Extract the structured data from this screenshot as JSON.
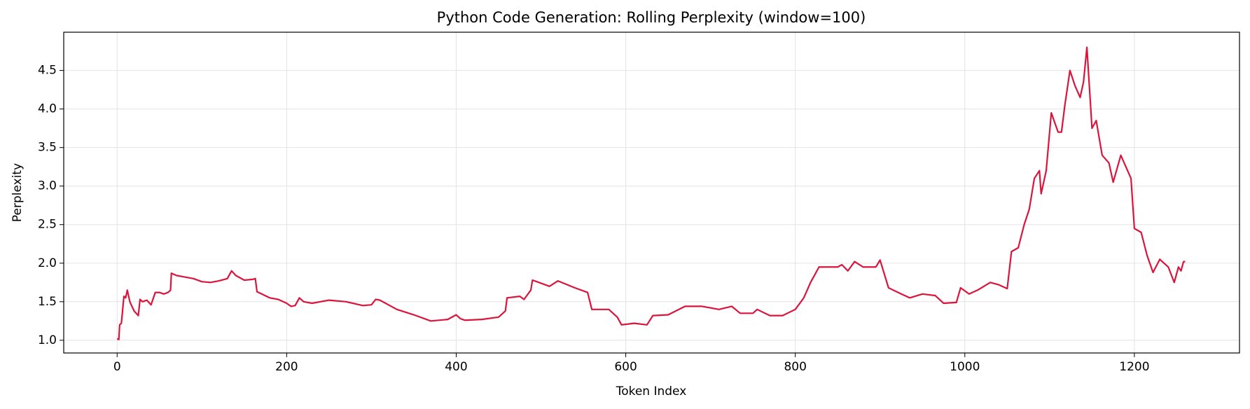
{
  "chart_data": {
    "type": "line",
    "title": "Python Code Generation: Rolling Perplexity (window=100)",
    "x_label": "Token Index",
    "y_label": "Perplexity",
    "x": [
      0,
      2,
      3,
      5,
      8,
      10,
      12,
      15,
      20,
      25,
      27,
      30,
      35,
      40,
      45,
      50,
      55,
      60,
      63,
      64,
      70,
      80,
      90,
      100,
      110,
      120,
      130,
      135,
      140,
      150,
      160,
      163,
      165,
      180,
      190,
      200,
      205,
      210,
      215,
      220,
      230,
      250,
      270,
      290,
      300,
      305,
      310,
      330,
      350,
      370,
      390,
      400,
      405,
      410,
      430,
      450,
      458,
      460,
      475,
      480,
      488,
      490,
      510,
      520,
      540,
      555,
      560,
      580,
      590,
      595,
      610,
      625,
      632,
      650,
      670,
      690,
      710,
      725,
      735,
      750,
      755,
      770,
      785,
      800,
      810,
      818,
      828,
      850,
      855,
      862,
      870,
      880,
      895,
      900,
      910,
      925,
      935,
      950,
      965,
      975,
      990,
      995,
      1005,
      1015,
      1030,
      1040,
      1050,
      1055,
      1063,
      1070,
      1076,
      1082,
      1088,
      1090,
      1096,
      1102,
      1110,
      1114,
      1118,
      1124,
      1130,
      1136,
      1140,
      1144,
      1150,
      1155,
      1162,
      1170,
      1175,
      1184,
      1190,
      1196,
      1200,
      1208,
      1215,
      1222,
      1230,
      1240,
      1247,
      1252,
      1255,
      1258,
      1260
    ],
    "series": [
      {
        "name": "Perplexity",
        "color": "#dc143c",
        "values": [
          1.02,
          1.01,
          1.2,
          1.22,
          1.57,
          1.55,
          1.65,
          1.5,
          1.38,
          1.32,
          1.53,
          1.5,
          1.52,
          1.46,
          1.62,
          1.62,
          1.6,
          1.62,
          1.65,
          1.87,
          1.84,
          1.82,
          1.8,
          1.76,
          1.75,
          1.77,
          1.8,
          1.9,
          1.84,
          1.78,
          1.79,
          1.8,
          1.63,
          1.55,
          1.53,
          1.48,
          1.44,
          1.45,
          1.55,
          1.5,
          1.48,
          1.52,
          1.5,
          1.45,
          1.46,
          1.53,
          1.52,
          1.4,
          1.33,
          1.25,
          1.27,
          1.33,
          1.28,
          1.26,
          1.27,
          1.3,
          1.38,
          1.55,
          1.57,
          1.53,
          1.65,
          1.78,
          1.7,
          1.77,
          1.68,
          1.62,
          1.4,
          1.4,
          1.3,
          1.2,
          1.22,
          1.2,
          1.32,
          1.33,
          1.44,
          1.44,
          1.4,
          1.44,
          1.35,
          1.35,
          1.4,
          1.32,
          1.32,
          1.4,
          1.55,
          1.75,
          1.95,
          1.95,
          1.98,
          1.9,
          2.02,
          1.95,
          1.95,
          2.04,
          1.68,
          1.6,
          1.55,
          1.6,
          1.58,
          1.48,
          1.49,
          1.68,
          1.6,
          1.65,
          1.75,
          1.72,
          1.67,
          2.15,
          2.2,
          2.5,
          2.7,
          3.1,
          3.2,
          2.9,
          3.2,
          3.95,
          3.7,
          3.7,
          4.05,
          4.5,
          4.3,
          4.15,
          4.35,
          4.8,
          3.75,
          3.85,
          3.4,
          3.3,
          3.05,
          3.4,
          3.25,
          3.1,
          2.45,
          2.4,
          2.1,
          1.88,
          2.05,
          1.95,
          1.75,
          1.95,
          1.9,
          2.02,
          2.02
        ]
      }
    ],
    "xlim": [
      -63,
      1324
    ],
    "ylim": [
      0.835,
      4.996
    ],
    "xticks": [
      0,
      200,
      400,
      600,
      800,
      1000,
      1200
    ],
    "yticks": [
      {
        "value": 1,
        "label": "1.0"
      },
      1.5,
      {
        "value": 2,
        "label": "2.0"
      },
      2.5,
      {
        "value": 3,
        "label": "3.0"
      },
      3.5,
      {
        "value": 4,
        "label": "4.0"
      },
      4.5
    ],
    "grid": true
  }
}
